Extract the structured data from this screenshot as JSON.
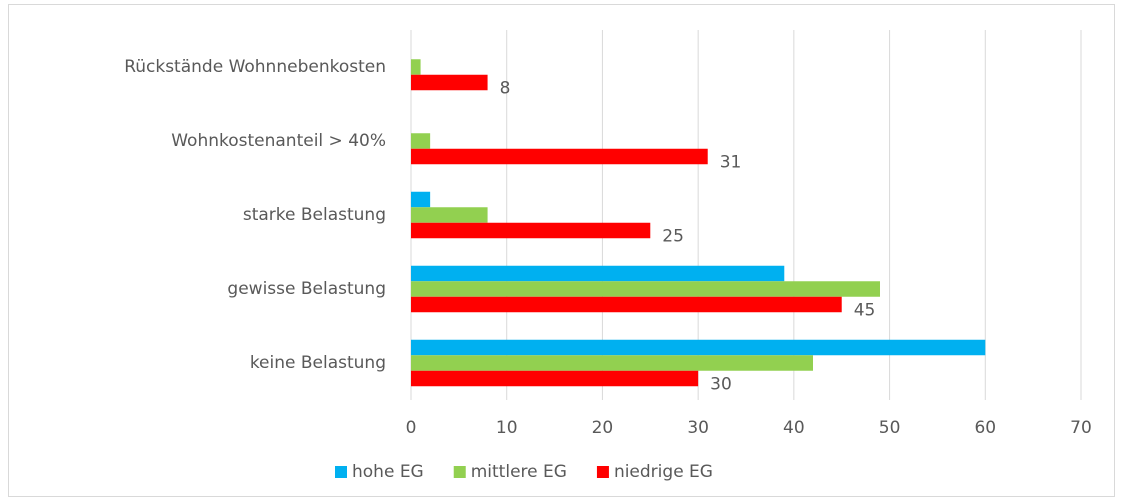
{
  "chart_data": {
    "type": "hbar",
    "categories": [
      "Rückstände Wohnnebenkosten",
      "Wohnkostenanteil > 40%",
      "starke Belastung",
      "gewisse Belastung",
      "keine Belastung"
    ],
    "series": [
      {
        "name": "hohe EG",
        "color": "#00b0f0",
        "values": [
          0,
          0,
          2,
          39,
          60
        ]
      },
      {
        "name": "mittlere EG",
        "color": "#92d050",
        "values": [
          1,
          2,
          8,
          49,
          42
        ]
      },
      {
        "name": "niedrige EG",
        "color": "#ff0000",
        "values": [
          8,
          31,
          25,
          45,
          30
        ],
        "show_labels": true
      }
    ],
    "xlim": [
      0,
      70
    ],
    "xticks": [
      0,
      10,
      20,
      30,
      40,
      50,
      60,
      70
    ],
    "grid": true,
    "legend": "bottom"
  }
}
